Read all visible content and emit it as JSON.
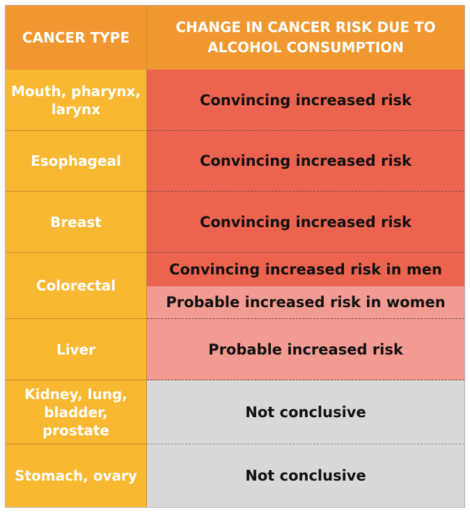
{
  "header": {
    "col1": "CANCER TYPE",
    "col2": "CHANGE IN CANCER RISK DUE TO ALCOHOL CONSUMPTION"
  },
  "rows": [
    {
      "type": "Mouth, pharynx, larynx",
      "risk": "Convincing increased risk"
    },
    {
      "type": "Esophageal",
      "risk": "Convincing increased risk"
    },
    {
      "type": "Breast",
      "risk": "Convincing increased risk"
    },
    {
      "type": "Colorectal",
      "risk_men": "Convincing increased risk in men",
      "risk_women": "Probable increased risk in women"
    },
    {
      "type": "Liver",
      "risk": "Probable increased risk"
    },
    {
      "type": "Kidney, lung, bladder, prostate",
      "risk": "Not conclusive"
    },
    {
      "type": "Stomach, ovary",
      "risk": "Not conclusive"
    }
  ],
  "colors": {
    "header": "#f0982f",
    "type_column": "#f9b832",
    "convincing": "#ec6450",
    "probable": "#f29b92",
    "not_conclusive": "#d9d8d8"
  }
}
